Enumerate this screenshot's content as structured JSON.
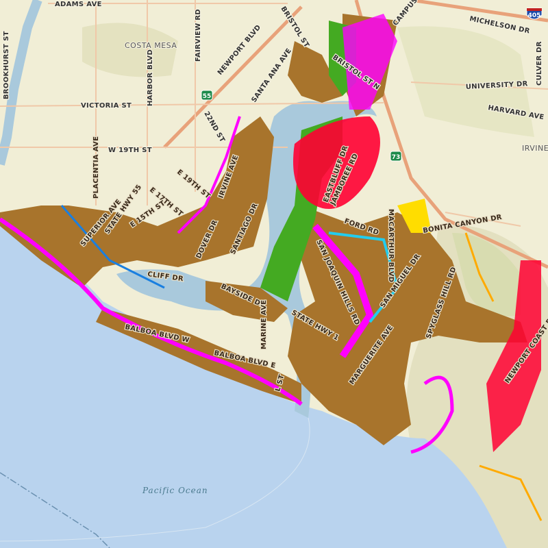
{
  "map": {
    "place_labels": [
      "COSTA MESA",
      "IRVINE"
    ],
    "water_label": "Pacific Ocean",
    "street_labels": [
      "ADAMS AVE",
      "BROOKHURST ST",
      "HARBOR BLVD",
      "FAIRVIEW RD",
      "NEWPORT BLVD",
      "BRISTOL ST",
      "BRISTOL ST N",
      "CAMPUS DR",
      "MICHELSON DR",
      "CULVER DR",
      "UNIVERSITY DR",
      "HARVARD AVE",
      "VICTORIA ST",
      "W 19TH ST",
      "PLACENTIA AVE",
      "22ND ST",
      "SANTA ANA AVE",
      "E 19TH ST",
      "E 17TH ST",
      "IRVINE AVE",
      "SUPERIOR AVE",
      "STATE HWY 55",
      "E 15TH ST",
      "DOVER DR",
      "SANTIAGO DR",
      "CLIFF DR",
      "EASTBLUFF DR",
      "JAMBOREE RD",
      "FORD RD",
      "MACARTHUR BLVD",
      "BONITA CANYON DR",
      "SAN JOAQUIN HILLS RD",
      "SAN MIGUEL DR",
      "SPYGLASS HILL RD",
      "BAYSIDE DR",
      "STATE HWY 1",
      "MARINE AVE",
      "MARGUERITE AVE",
      "BALBOA BLVD W",
      "BALBOA BLVD E",
      "L ST",
      "NEWPORT COAST DR"
    ],
    "shields": [
      {
        "route": "405",
        "type": "interstate"
      },
      {
        "route": "55",
        "type": "state"
      },
      {
        "route": "73",
        "type": "state"
      }
    ],
    "colors": {
      "land": "#f1eed6",
      "ocean": "#b9d3ee",
      "bay": "#a9c9dc",
      "parcels": "#a8742c",
      "highlight_magenta": "#ff00ff",
      "highlight_red": "#ff0033",
      "park_green": "#44aa22",
      "freeway": "#e8a27a"
    }
  }
}
